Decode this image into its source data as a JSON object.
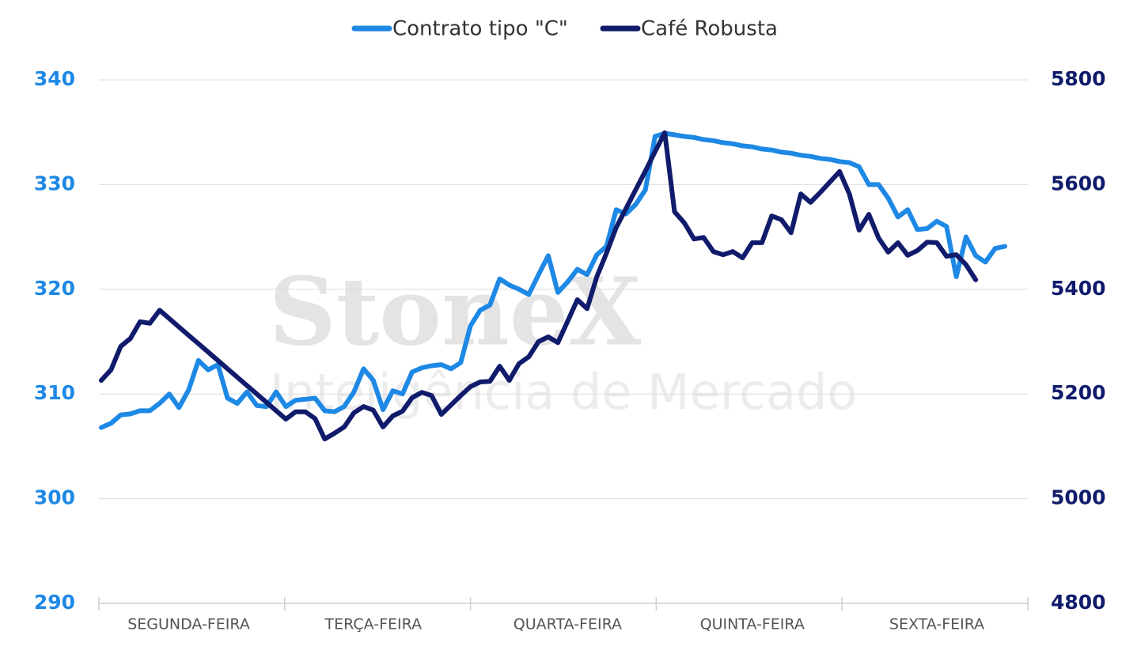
{
  "chart_data": {
    "type": "line",
    "legend": "top",
    "grid": true,
    "watermark": {
      "title": "StoneX",
      "subtitle": "Inteligência de Mercado"
    },
    "categories": [
      null,
      null,
      null,
      null,
      null,
      null,
      null,
      null,
      null,
      "SEGUNDA-FEIRA",
      null,
      null,
      null,
      null,
      null,
      null,
      null,
      null,
      null,
      null,
      null,
      null,
      null,
      null,
      null,
      null,
      null,
      null,
      "TERÇA-FEIRA",
      null,
      null,
      null,
      null,
      null,
      null,
      null,
      null,
      null,
      null,
      null,
      null,
      null,
      null,
      null,
      null,
      null,
      null,
      null,
      "QUARTA-FEIRA",
      null,
      null,
      null,
      null,
      null,
      null,
      null,
      null,
      null,
      null,
      null,
      null,
      null,
      null,
      null,
      null,
      null,
      null,
      "QUINTA-FEIRA",
      null,
      null,
      null,
      null,
      null,
      null,
      null,
      null,
      null,
      null,
      null,
      null,
      null,
      null,
      null,
      null,
      null,
      null,
      "SEXTA-FEIRA",
      null,
      null,
      null,
      null,
      null,
      null,
      null
    ],
    "ylim": [
      290,
      340
    ],
    "yticks": [
      290,
      300,
      310,
      320,
      330,
      340
    ],
    "y2lim": [
      4800,
      5800
    ],
    "y2ticks": [
      4800,
      5000,
      5200,
      5400,
      5600,
      5800
    ],
    "series": [
      {
        "name": "Contrato tipo \"C\"",
        "color": "#1e88e5",
        "axis": "y",
        "values": [
          306.8,
          307.2,
          308.0,
          308.1,
          308.4,
          308.4,
          309.1,
          310.0,
          308.7,
          310.4,
          313.2,
          312.3,
          312.8,
          309.6,
          309.1,
          310.2,
          308.9,
          308.8,
          310.2,
          308.8,
          309.4,
          309.5,
          309.6,
          308.4,
          308.3,
          308.8,
          310.2,
          312.4,
          311.3,
          308.5,
          310.3,
          310.0,
          312.1,
          312.5,
          312.7,
          312.8,
          312.4,
          313.0,
          316.5,
          318.0,
          318.5,
          321.0,
          320.4,
          320.0,
          319.5,
          321.4,
          323.2,
          319.7,
          320.7,
          321.9,
          321.4,
          323.3,
          324.1,
          327.6,
          327.2,
          328.1,
          329.5,
          334.6,
          334.9,
          334.75,
          334.6,
          334.5,
          334.3,
          334.2,
          334.0,
          333.9,
          333.7,
          333.6,
          333.4,
          333.3,
          333.1,
          333.0,
          332.8,
          332.7,
          332.5,
          332.4,
          332.2,
          332.1,
          331.7,
          330.0,
          330.0,
          328.7,
          326.9,
          327.6,
          325.7,
          325.8,
          326.5,
          326.0,
          321.2,
          325.0,
          323.2,
          322.6,
          323.9,
          324.1
        ]
      },
      {
        "name": "Café Robusta",
        "color": "#111b6b",
        "axis": "y2",
        "values": [
          5226,
          5246,
          5291,
          5306,
          5338,
          5335,
          5360,
          5344,
          5328,
          5312,
          5296,
          5280,
          5264,
          5248,
          5232,
          5216,
          5200,
          5184,
          5168,
          5152,
          5166,
          5166,
          5153,
          5114,
          5125,
          5137,
          5164,
          5176,
          5169,
          5137,
          5158,
          5167,
          5193,
          5203,
          5197,
          5161,
          5179,
          5197,
          5214,
          5223,
          5224,
          5253,
          5226,
          5258,
          5271,
          5300,
          5309,
          5298,
          5339,
          5380,
          5363,
          5424,
          5469,
          5518,
          5554,
          5590,
          5626,
          5663,
          5699,
          5548,
          5527,
          5496,
          5499,
          5472,
          5466,
          5472,
          5460,
          5489,
          5489,
          5540,
          5533,
          5508,
          5582,
          5566,
          5585,
          5605,
          5625,
          5582,
          5513,
          5543,
          5498,
          5471,
          5489,
          5465,
          5474,
          5490,
          5489,
          5463,
          5466,
          5447,
          5418,
          null,
          null,
          null
        ]
      }
    ]
  }
}
